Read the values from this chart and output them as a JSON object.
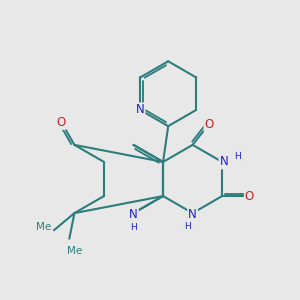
{
  "background_color": "#e8e8e8",
  "bond_color": "#2d7d7d",
  "bond_width": 1.5,
  "atom_colors": {
    "N": "#2020cc",
    "O": "#cc2020",
    "C": "#2d7d7d",
    "H": "#666666"
  },
  "font_size_atom": 8.5,
  "font_size_H": 6.5,
  "figsize": [
    3.0,
    3.0
  ],
  "dpi": 100
}
